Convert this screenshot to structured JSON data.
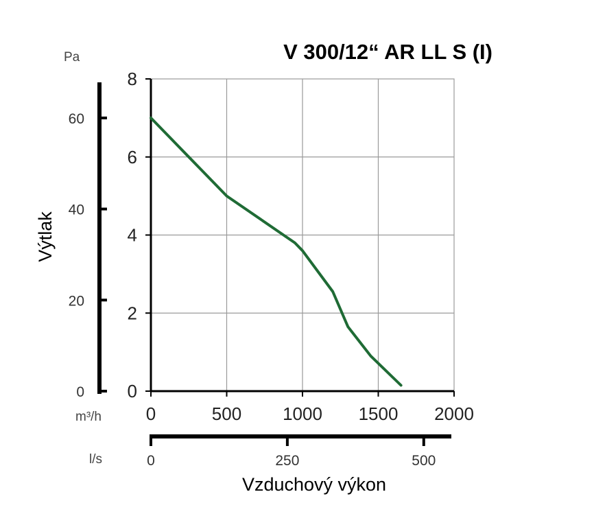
{
  "chart_data": {
    "type": "line",
    "title": "V 300/12“ AR LL S (I)",
    "xlabel": "Vzduchový výkon",
    "ylabel": "Výtlak",
    "x_unit_primary": "m³/h",
    "x_unit_secondary": "l/s",
    "y_unit_outer": "Pa",
    "xlim": [
      0,
      2000
    ],
    "ylim": [
      0,
      8
    ],
    "x_ticks": [
      "0",
      "500",
      "1000",
      "1500",
      "2000"
    ],
    "y_ticks": [
      "0",
      "2",
      "4",
      "6",
      "8"
    ],
    "secondary_x_ticks": [
      "0",
      "250",
      "500"
    ],
    "outer_y_ticks": [
      "0",
      "20",
      "40",
      "60"
    ],
    "grid": true,
    "line_color": "#1f6b35",
    "series": [
      {
        "x": [
          0,
          250,
          500,
          950,
          1000,
          1200,
          1300,
          1450,
          1650
        ],
        "y": [
          7.0,
          6.0,
          5.0,
          3.8,
          3.6,
          2.55,
          1.65,
          0.9,
          0.15
        ]
      }
    ]
  }
}
